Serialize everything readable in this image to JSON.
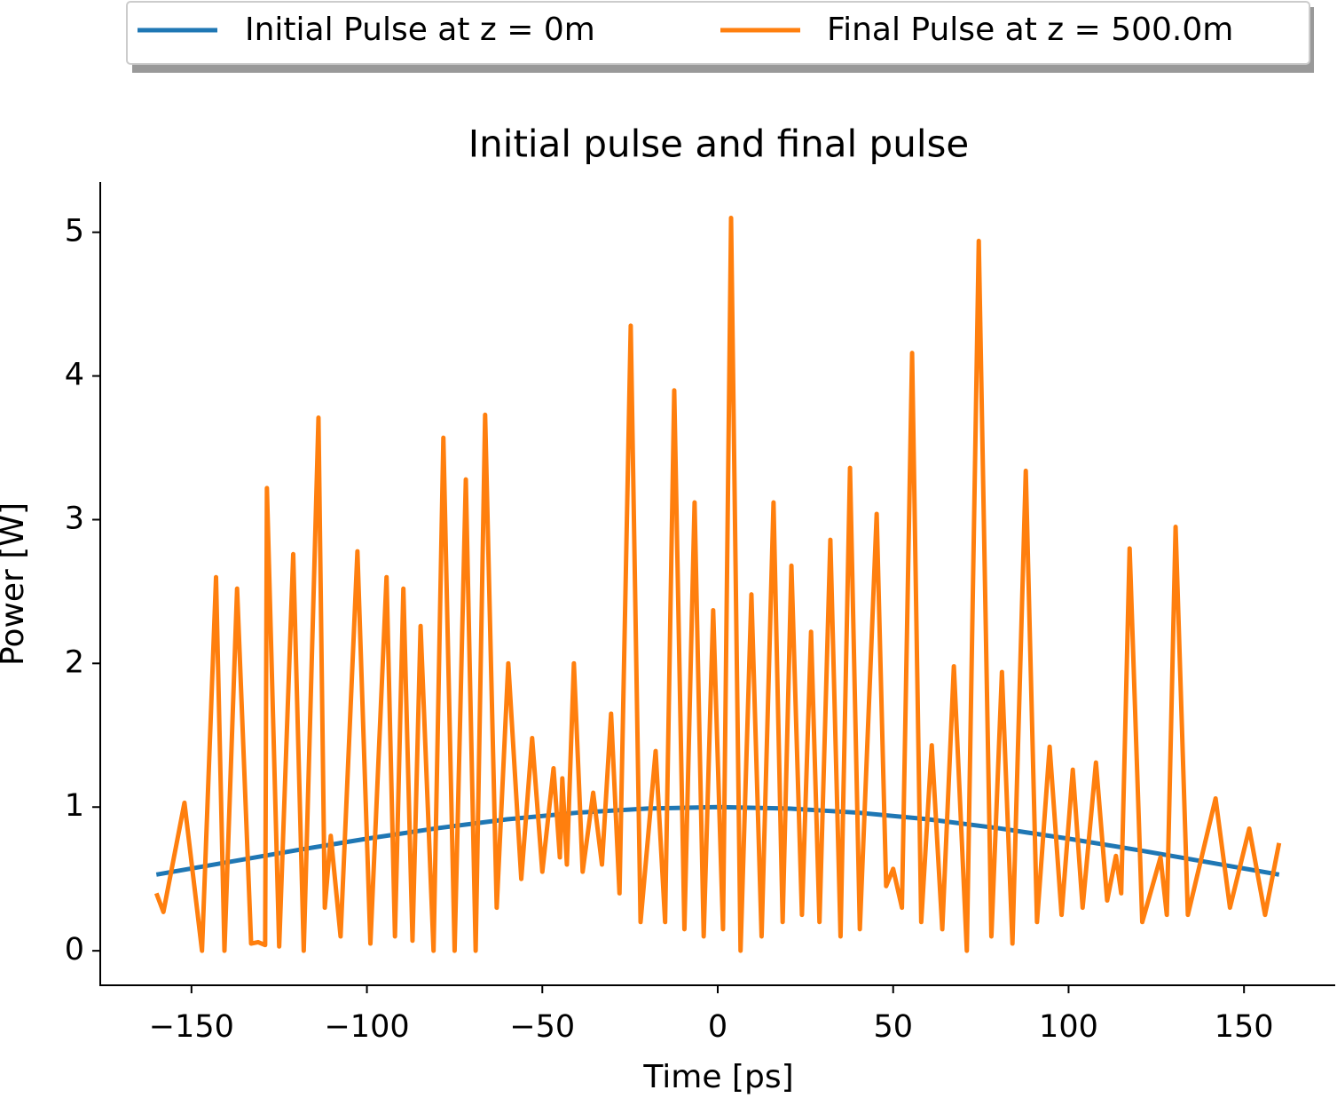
{
  "chart_data": {
    "type": "line",
    "title": "Initial pulse and final pulse",
    "x_label": "Time [ps]",
    "y_label": "Power [W]",
    "xlim": [
      -176,
      176
    ],
    "ylim": [
      -0.24,
      5.35
    ],
    "xticks": [
      {
        "value": -150,
        "label": "−150"
      },
      {
        "value": -100,
        "label": "−100"
      },
      {
        "value": -50,
        "label": "−50"
      },
      0,
      50,
      100,
      150
    ],
    "yticks": [
      0,
      1,
      2,
      3,
      4,
      5
    ],
    "grid": false,
    "legend": "upper center",
    "series": [
      {
        "name": "Initial Pulse at z = 0m",
        "color": "#1f77b4",
        "x": [
          -160,
          -140,
          -120,
          -100,
          -80,
          -60,
          -40,
          -20,
          0,
          20,
          40,
          60,
          80,
          100,
          120,
          140,
          160
        ],
        "values": [
          0.53,
          0.615,
          0.7,
          0.78,
          0.853,
          0.915,
          0.961,
          0.99,
          1,
          0.99,
          0.961,
          0.915,
          0.853,
          0.78,
          0.7,
          0.615,
          0.53
        ]
      },
      {
        "name": "Final Pulse at z = 500.0m",
        "color": "#ff7f0e",
        "x": [
          -160,
          -158,
          -152,
          -147,
          -143,
          -140.6,
          -137,
          -133,
          -131,
          -129,
          -128.5,
          -125,
          -121,
          -118,
          -113.8,
          -112,
          -110.3,
          -107.5,
          -102.7,
          -99,
          -94.4,
          -92,
          -89.6,
          -87,
          -84.7,
          -81,
          -78.2,
          -75,
          -71.8,
          -69,
          -66.3,
          -63,
          -59.7,
          -56,
          -52.9,
          -50,
          -46.8,
          -45,
          -44.3,
          -43,
          -41,
          -38.5,
          -35.5,
          -33,
          -30.4,
          -28,
          -24.8,
          -22,
          -17.7,
          -15,
          -12.4,
          -9.5,
          -6.6,
          -4,
          -1.3,
          1.5,
          3.8,
          6.5,
          9.6,
          12.5,
          15.9,
          18.5,
          21,
          24,
          26.6,
          29,
          32.1,
          35,
          37.7,
          40.5,
          45.3,
          48,
          50,
          52.5,
          55.4,
          58,
          61,
          64,
          67.3,
          71,
          74.4,
          78,
          81,
          84,
          87.8,
          91,
          94.6,
          98,
          101.2,
          104,
          107.8,
          111,
          113.5,
          115,
          117.4,
          121,
          126.2,
          128,
          130.5,
          134,
          141.9,
          146,
          151.5,
          156,
          160
        ],
        "values": [
          0.4,
          0.27,
          1.03,
          0.0,
          2.6,
          0.0,
          2.52,
          0.05,
          0.06,
          0.04,
          3.22,
          0.03,
          2.76,
          0.0,
          3.71,
          0.3,
          0.8,
          0.1,
          2.78,
          0.05,
          2.6,
          0.1,
          2.52,
          0.07,
          2.26,
          0.0,
          3.57,
          0.0,
          3.28,
          0.0,
          3.73,
          0.3,
          2.0,
          0.5,
          1.48,
          0.55,
          1.27,
          0.65,
          1.2,
          0.6,
          2.0,
          0.55,
          1.1,
          0.6,
          1.65,
          0.4,
          4.35,
          0.2,
          1.39,
          0.2,
          3.9,
          0.15,
          3.12,
          0.1,
          2.37,
          0.15,
          5.1,
          0.0,
          2.48,
          0.1,
          3.12,
          0.2,
          2.68,
          0.25,
          2.22,
          0.2,
          2.86,
          0.1,
          3.36,
          0.15,
          3.04,
          0.45,
          0.57,
          0.3,
          4.16,
          0.2,
          1.43,
          0.15,
          1.98,
          0.0,
          4.94,
          0.1,
          1.94,
          0.05,
          3.34,
          0.2,
          1.42,
          0.25,
          1.26,
          0.3,
          1.31,
          0.35,
          0.66,
          0.4,
          2.8,
          0.2,
          0.65,
          0.25,
          2.95,
          0.25,
          1.06,
          0.3,
          0.85,
          0.25,
          0.75
        ]
      }
    ]
  }
}
